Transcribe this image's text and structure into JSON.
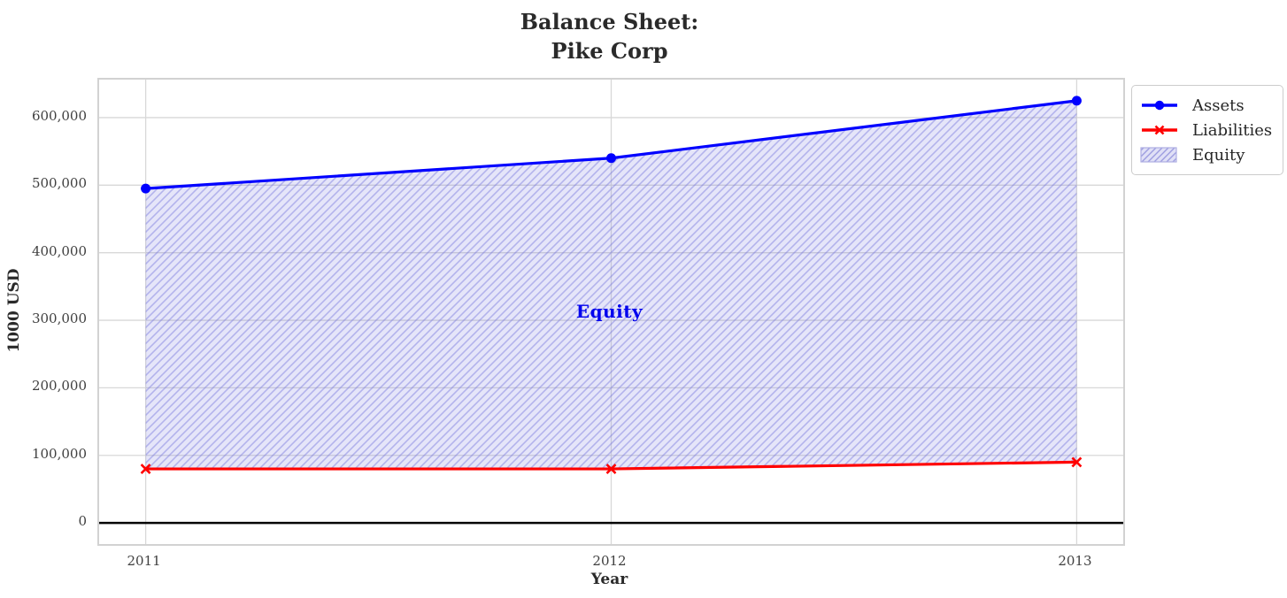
{
  "chart_data": {
    "type": "line",
    "title": "Balance Sheet:\nPike Corp",
    "xlabel": "Year",
    "ylabel": "1000 USD",
    "x": [
      2011,
      2012,
      2013
    ],
    "xtick_labels": [
      "2011",
      "2012",
      "2013"
    ],
    "yticks": [
      0,
      100000,
      200000,
      300000,
      400000,
      500000,
      600000
    ],
    "ytick_labels": [
      "0",
      "100,000",
      "200,000",
      "300,000",
      "400,000",
      "500,000",
      "600,000"
    ],
    "xlim": [
      2010.9,
      2013.1
    ],
    "ylim": [
      -31250,
      656250
    ],
    "grid": true,
    "series": [
      {
        "name": "Assets",
        "values": [
          495000,
          540000,
          625000
        ],
        "color": "#0000ff",
        "marker": "circle"
      },
      {
        "name": "Liabilities",
        "values": [
          80000,
          80000,
          90000
        ],
        "color": "#ff0000",
        "marker": "x"
      }
    ],
    "area": {
      "name": "Equity",
      "between": [
        "Liabilities",
        "Assets"
      ],
      "label": "Equity",
      "label_color": "#0000ee",
      "label_x": 2012,
      "label_y": 310000,
      "fill_color": "rgba(102,102,221,0.17)",
      "hatch_color": "rgba(119,119,221,0.45)"
    },
    "zero_line_color": "#000000",
    "grid_color": "#d8d8d8",
    "legend_position": "top-right-outside"
  },
  "legend": {
    "entries": [
      {
        "label": "Assets",
        "type": "line-circle",
        "color": "#0000ff"
      },
      {
        "label": "Liabilities",
        "type": "line-x",
        "color": "#ff0000"
      },
      {
        "label": "Equity",
        "type": "hatch-patch",
        "fill": "#e0e0f6",
        "hatch": "#9d9de0"
      }
    ]
  }
}
